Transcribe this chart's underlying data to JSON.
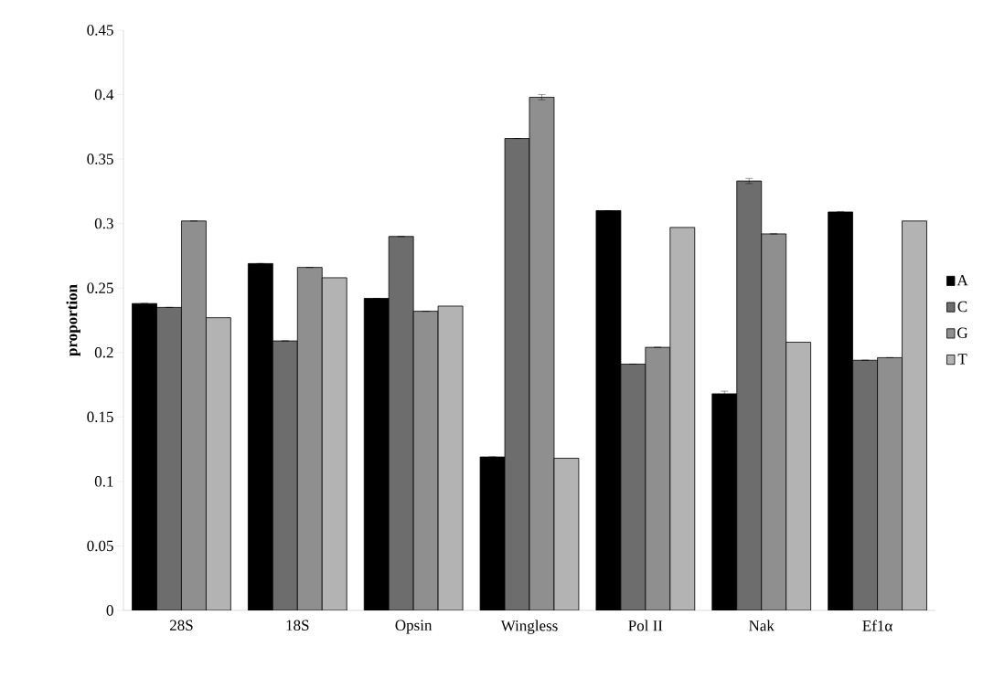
{
  "chart_data": {
    "type": "bar",
    "ylabel": "proportion",
    "categories": [
      "28S",
      "18S",
      "Opsin",
      "Wingless",
      "Pol II",
      "Nak",
      "Ef1α"
    ],
    "series": [
      {
        "name": "A",
        "color": "#000000",
        "values": [
          0.238,
          0.269,
          0.242,
          0.119,
          0.31,
          0.168,
          0.309
        ],
        "errors": [
          null,
          null,
          null,
          null,
          null,
          0.002,
          null
        ]
      },
      {
        "name": "C",
        "color": "#6d6d6d",
        "values": [
          0.235,
          0.209,
          0.29,
          0.366,
          0.191,
          0.333,
          0.194
        ],
        "errors": [
          null,
          null,
          null,
          null,
          null,
          0.002,
          null
        ]
      },
      {
        "name": "G",
        "color": "#8f8f8f",
        "values": [
          0.302,
          0.266,
          0.232,
          0.398,
          0.204,
          0.292,
          0.196
        ],
        "errors": [
          null,
          null,
          null,
          0.002,
          null,
          null,
          null
        ]
      },
      {
        "name": "T",
        "color": "#b3b3b3",
        "values": [
          0.227,
          0.258,
          0.236,
          0.118,
          0.297,
          0.208,
          0.302
        ]
      }
    ],
    "ylim": [
      0,
      0.45
    ],
    "yticks": [
      0,
      0.05,
      0.1,
      0.15,
      0.2,
      0.25,
      0.3,
      0.35,
      0.4,
      0.45
    ],
    "grid": false,
    "legend": "right"
  }
}
